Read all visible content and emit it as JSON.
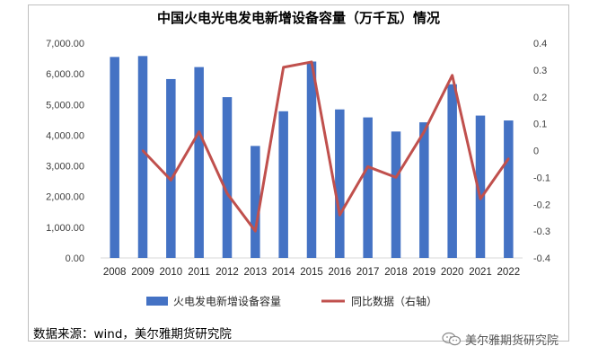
{
  "chart_data": {
    "type": "bar+line",
    "title": "中国火电光电发电新增设备容量（万千瓦）情况",
    "categories": [
      "2008",
      "2009",
      "2010",
      "2011",
      "2012",
      "2013",
      "2014",
      "2015",
      "2016",
      "2017",
      "2018",
      "2019",
      "2020",
      "2021",
      "2022"
    ],
    "series": [
      {
        "name": "火电发电新增设备容量",
        "type": "bar",
        "axis": "left",
        "color": "#4472c4",
        "values": [
          6550,
          6580,
          5830,
          6220,
          5240,
          3650,
          4780,
          6400,
          4840,
          4580,
          4120,
          4420,
          5660,
          4640,
          4480
        ]
      },
      {
        "name": "同比数据（右轴）",
        "type": "line",
        "axis": "right",
        "color": "#c0504d",
        "values": [
          null,
          0.0,
          -0.11,
          0.07,
          -0.16,
          -0.3,
          0.31,
          0.33,
          -0.24,
          -0.06,
          -0.1,
          0.07,
          0.28,
          -0.18,
          -0.03
        ]
      }
    ],
    "yleft": {
      "min": 0,
      "max": 7000,
      "ticks": [
        "0.00",
        "1,000.00",
        "2,000.00",
        "3,000.00",
        "4,000.00",
        "5,000.00",
        "6,000.00",
        "7,000.00"
      ]
    },
    "yright": {
      "min": -0.4,
      "max": 0.4,
      "ticks": [
        "-0.4",
        "-0.3",
        "-0.2",
        "-0.1",
        "0",
        "0.1",
        "0.2",
        "0.3",
        "0.4"
      ]
    },
    "legend": "bottom",
    "grid": false
  },
  "source": "数据来源：wind，美尔雅期货研究院",
  "watermark": "美尔雅期货研究院",
  "watermark_icon": "wechat-icon"
}
